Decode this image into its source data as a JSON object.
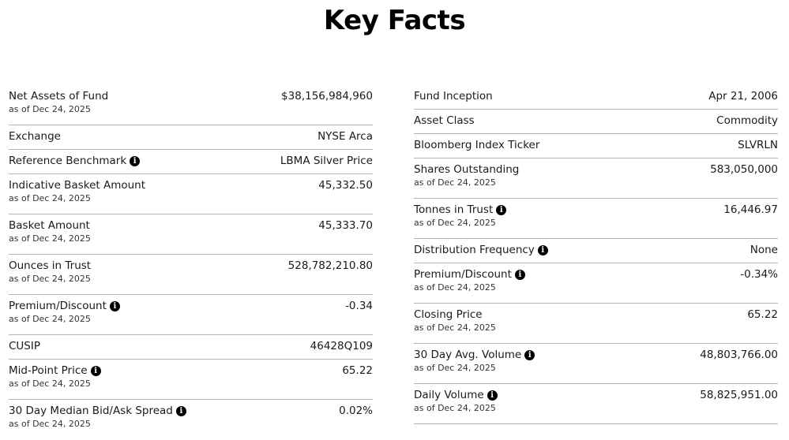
{
  "title": "Key Facts",
  "info_glyph": "i",
  "left": [
    {
      "label": "Net Assets of Fund",
      "value": "$38,156,984,960",
      "asof": "as of Dec 24, 2025",
      "info": false
    },
    {
      "label": "Exchange",
      "value": "NYSE Arca",
      "asof": "",
      "info": false
    },
    {
      "label": "Reference Benchmark",
      "value": "LBMA Silver Price",
      "asof": "",
      "info": true
    },
    {
      "label": "Indicative Basket Amount",
      "value": "45,332.50",
      "asof": "as of Dec 24, 2025",
      "info": false
    },
    {
      "label": "Basket Amount",
      "value": "45,333.70",
      "asof": "as of Dec 24, 2025",
      "info": false
    },
    {
      "label": "Ounces in Trust",
      "value": "528,782,210.80",
      "asof": "as of Dec 24, 2025",
      "info": false
    },
    {
      "label": "Premium/Discount",
      "value": "-0.34",
      "asof": "as of Dec 24, 2025",
      "info": true
    },
    {
      "label": "CUSIP",
      "value": "46428Q109",
      "asof": "",
      "info": false
    },
    {
      "label": "Mid-Point Price",
      "value": "65.22",
      "asof": "as of Dec 24, 2025",
      "info": true
    },
    {
      "label": "30 Day Median Bid/Ask Spread",
      "value": "0.02%",
      "asof": "as of Dec 24, 2025",
      "info": true
    }
  ],
  "right": [
    {
      "label": "Fund Inception",
      "value": "Apr 21, 2006",
      "asof": "",
      "info": false
    },
    {
      "label": "Asset Class",
      "value": "Commodity",
      "asof": "",
      "info": false
    },
    {
      "label": "Bloomberg Index Ticker",
      "value": "SLVRLN",
      "asof": "",
      "info": false
    },
    {
      "label": "Shares Outstanding",
      "value": "583,050,000",
      "asof": "as of Dec 24, 2025",
      "info": false
    },
    {
      "label": "Tonnes in Trust",
      "value": "16,446.97",
      "asof": "as of Dec 24, 2025",
      "info": true
    },
    {
      "label": "Distribution Frequency",
      "value": "None",
      "asof": "",
      "info": true
    },
    {
      "label": "Premium/Discount",
      "value": "-0.34%",
      "asof": "as of Dec 24, 2025",
      "info": true
    },
    {
      "label": "Closing Price",
      "value": "65.22",
      "asof": "as of Dec 24, 2025",
      "info": false
    },
    {
      "label": "30 Day Avg. Volume",
      "value": "48,803,766.00",
      "asof": "as of Dec 24, 2025",
      "info": true
    },
    {
      "label": "Daily Volume",
      "value": "58,825,951.00",
      "asof": "as of Dec 24, 2025",
      "info": true
    }
  ]
}
